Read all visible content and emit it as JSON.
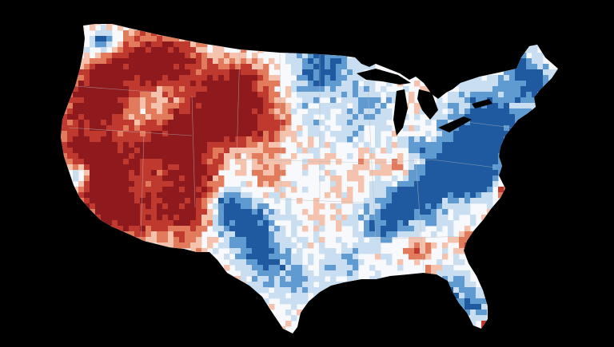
{
  "map": {
    "background_color": "#000000",
    "water_color": "#000000",
    "land_neutral_color": "#f7f9fc",
    "border_color": "#b9b9b9",
    "palette": {
      "deep_red": "#8e1a1e",
      "red": "#c0392f",
      "orange_red": "#e27a5c",
      "light_red": "#f4c2ad",
      "neutral": "#f7f9fc",
      "light_blue": "#c9def0",
      "blue": "#5f9bd0",
      "deep_blue": "#1f5aa0"
    },
    "legend_visible": false,
    "title_visible": false
  }
}
